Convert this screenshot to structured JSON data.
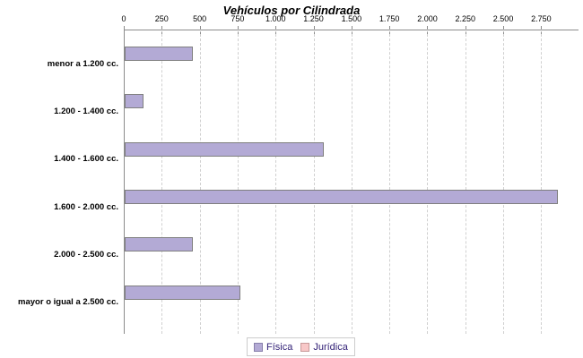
{
  "chart_data": {
    "type": "bar",
    "orientation": "horizontal",
    "title": "Vehículos por Cilindrada",
    "xlabel": "",
    "ylabel": "",
    "categories": [
      "menor a 1.200 cc.",
      "1.200 - 1.400 cc.",
      "1.400 - 1.600 cc.",
      "1.600 - 2.000 cc.",
      "2.000 - 2.500 cc.",
      "mayor o igual a 2.500 cc."
    ],
    "series": [
      {
        "name": "Física",
        "values": [
          440,
          110,
          1300,
          2840,
          440,
          750
        ],
        "color": "#b3aad5",
        "border_color": "#7f7f7f"
      },
      {
        "name": "Jurídica",
        "values": [
          0,
          0,
          0,
          0,
          0,
          0
        ],
        "color": "#f8c8c8",
        "border_color": "#c89a9a"
      }
    ],
    "axis": {
      "position": "top",
      "min": 0,
      "max": 2990,
      "tick_step": 250,
      "tick_labels": [
        "0",
        "250",
        "500",
        "750",
        "1.000",
        "1.250",
        "1.500",
        "1.750",
        "2.000",
        "2.250",
        "2.500",
        "2.750"
      ]
    },
    "grid": "vertical-dashed",
    "legend_position": "bottom"
  },
  "legend": {
    "text_color": "#332277",
    "border_color": "#cccccc",
    "items": [
      {
        "label": "Física",
        "swatch_color": "#b3aad5",
        "swatch_border": "#8880ab"
      },
      {
        "label": "Jurídica",
        "swatch_color": "#f8c8c8",
        "swatch_border": "#c89a9a"
      }
    ]
  }
}
